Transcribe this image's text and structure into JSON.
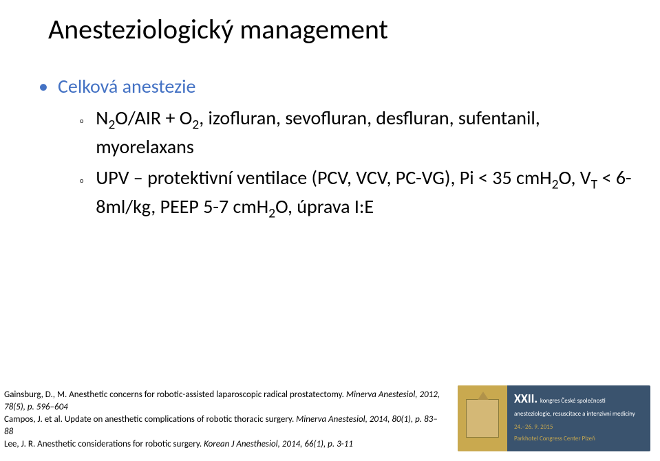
{
  "title": "Anesteziologický management",
  "main_bullet": "Celková anestezie",
  "sub1_html": "N<sub>2</sub>O/AIR + O<sub>2</sub>, izofluran, sevofluran, desfluran, sufentanil, myorelaxans",
  "sub2_html": "UPV – protektivní ventilace (PCV, VCV, PC-VG), Pi &lt; 35 cmH<sub>2</sub>O, V<sub>T</sub> &lt; 6-8ml/kg, PEEP 5-7 cmH<sub>2</sub>O, úprava I:E",
  "references": {
    "r1a": "Gainsburg, D., M. Anesthetic concerns for robotic-assisted laparoscopic radical prostatectomy.",
    "r1b_italic": " Minerva Anestesiol, 2012,  78(5), p. 596–604",
    "r2a": "Campos, J. et al. Update on anesthetic  complications of robotic thoracic surgery.",
    "r2b_italic": " Minerva Anestesiol, 2014, 80(1), p. 83–88",
    "r3a": "Lee, J. R. Anesthetic considerations for robotic surgery.",
    "r3b_italic": " Korean J Anesthesiol, 2014, 66(1), p. 3-11"
  },
  "logo": {
    "roman": "XXII.",
    "line1": "kongres České společnosti anesteziologie, resuscitace a intenzivní medicíny",
    "line2a": "24.–26. 9. 2015",
    "line2b": "Parkhotel Congress Center Plzeň"
  },
  "colors": {
    "title": "#000000",
    "bullet_accent": "#4472c4",
    "body_text": "#000000",
    "logo_bg": "#3a536e",
    "logo_gold": "#c9a94f",
    "background": "#ffffff"
  },
  "fonts": {
    "title_size_pt": 30,
    "bullet_size_pt": 21,
    "ref_size_pt": 10,
    "family": "Calibri"
  }
}
